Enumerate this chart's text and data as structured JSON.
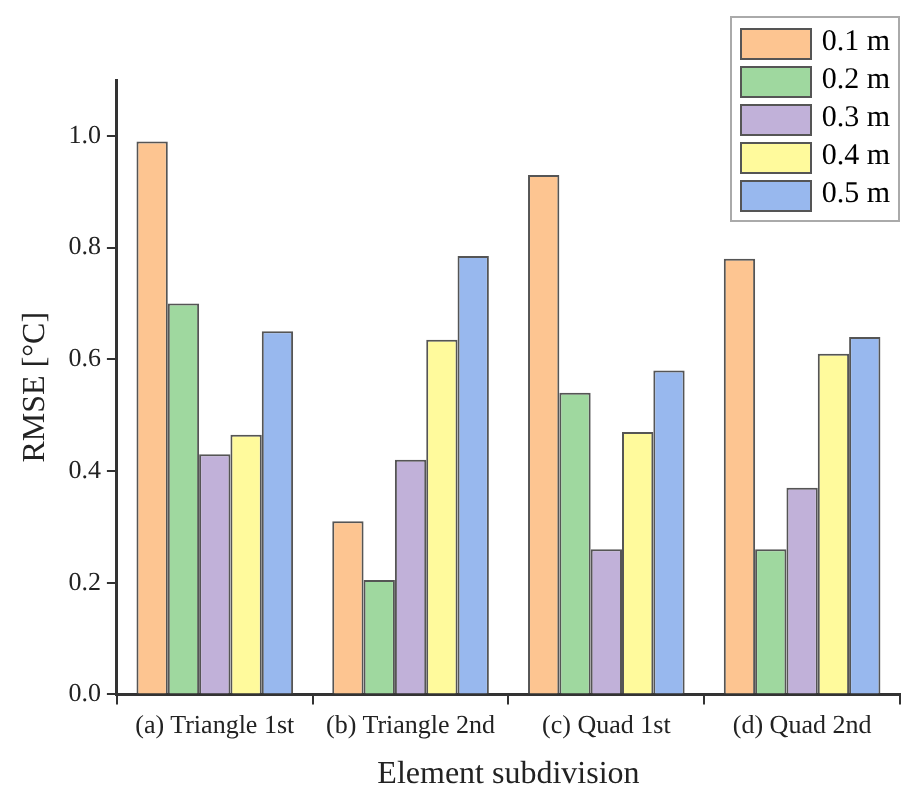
{
  "chart_data": {
    "type": "bar",
    "xlabel": "Element subdivision",
    "ylabel": "RMSE [°C]",
    "categories": [
      "(a) Triangle 1st",
      "(b) Triangle 2nd",
      "(c) Quad 1st",
      "(d) Quad 2nd"
    ],
    "series": [
      {
        "name": "0.1 m",
        "color": "#fdc591",
        "values": [
          0.99,
          0.31,
          0.93,
          0.78
        ]
      },
      {
        "name": "0.2 m",
        "color": "#9fd89f",
        "values": [
          0.7,
          0.205,
          0.54,
          0.26
        ]
      },
      {
        "name": "0.3 m",
        "color": "#c1b1d9",
        "values": [
          0.43,
          0.42,
          0.26,
          0.37
        ]
      },
      {
        "name": "0.4 m",
        "color": "#fffa9c",
        "values": [
          0.465,
          0.635,
          0.47,
          0.61
        ]
      },
      {
        "name": "0.5 m",
        "color": "#98b8ee",
        "values": [
          0.65,
          0.785,
          0.58,
          0.64
        ]
      }
    ],
    "ylim": [
      0,
      1.1
    ],
    "yticks": [
      {
        "value": 0,
        "label": "0.0"
      },
      {
        "value": 0.2,
        "label": "0.2"
      },
      {
        "value": 0.4,
        "label": "0.4"
      },
      {
        "value": 0.6,
        "label": "0.6"
      },
      {
        "value": 0.8,
        "label": "0.8"
      },
      {
        "value": 1,
        "label": "1.0"
      }
    ],
    "grid": false,
    "legend": "top right"
  }
}
